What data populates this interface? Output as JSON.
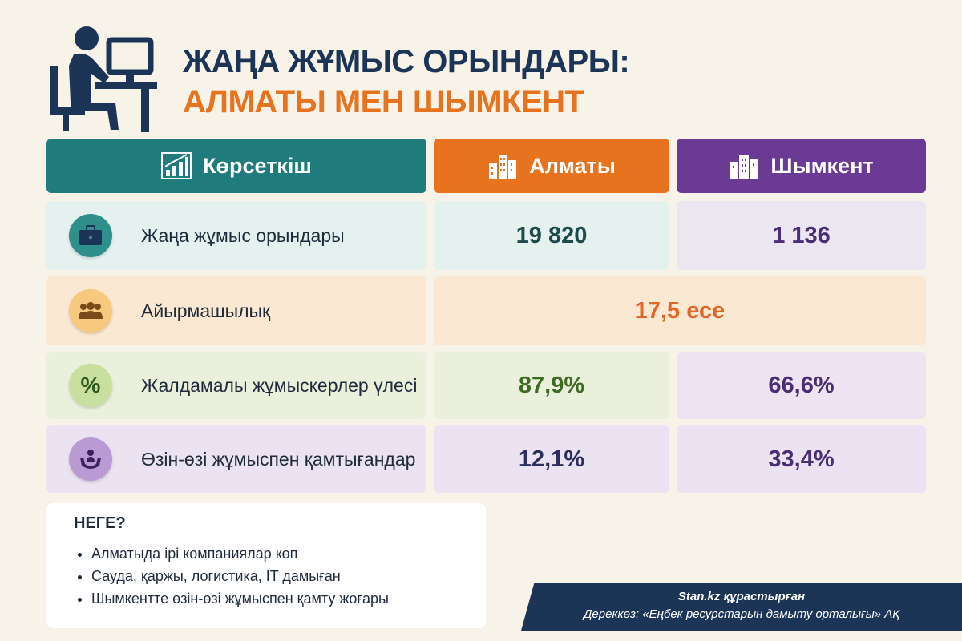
{
  "title": {
    "line1": "ЖАҢА ЖҰМЫС ОРЫНДАРЫ:",
    "line2": "АЛМАТЫ МЕН ШЫМКЕНТ"
  },
  "header": {
    "indicator": "Көрсеткіш",
    "almaty": "Алматы",
    "shymkent": "Шымкент"
  },
  "rows": [
    {
      "label": "Жаңа жұмыс орындары",
      "almaty": "19 820",
      "shymkent": "1 136",
      "icon": "briefcase-icon"
    },
    {
      "label": "Айырмашылық",
      "value": "17,5 есе",
      "icon": "people-group-icon"
    },
    {
      "label": "Жалдамалы жұмыскерлер үлесі",
      "almaty": "87,9%",
      "shymkent": "66,6%",
      "icon": "percent-icon"
    },
    {
      "label": "Өзін-өзі жұмыспен қамтығандар",
      "almaty": "12,1%",
      "shymkent": "33,4%",
      "icon": "hands-person-icon"
    }
  ],
  "why": {
    "title": "НЕГЕ?",
    "items": [
      "Алматыда ірі компаниялар көп",
      "Сауда, қаржы, логистика, IT дамыған",
      "Шымкентте өзін-өзі жұмыспен қамту жоғары"
    ]
  },
  "source": {
    "credit": "Stan.kz құрастырған",
    "text": "Дереккөз: «Еңбек ресурстарын дамыту орталығы» АҚ"
  },
  "colors": {
    "teal": "#1f7b7c",
    "orange": "#e8731f",
    "purple": "#6a3a94",
    "navy": "#1c3556"
  }
}
